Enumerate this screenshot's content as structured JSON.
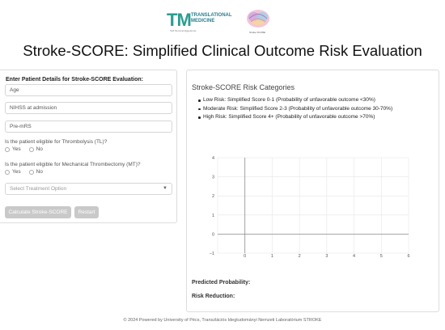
{
  "header": {
    "tm_logo_mark": "TM",
    "tm_logo_text": "TRANSLATIONAL MEDICINE",
    "tm_logo_sub": "Soft Semmel Egyetemet",
    "brain_logo_caption": "Stroke SCORE"
  },
  "page_title": "Stroke-SCORE: Simplified Clinical Outcome Risk Evaluation",
  "form": {
    "heading": "Enter Patient Details for Stroke-SCORE Evaluation:",
    "age_placeholder": "Age",
    "nihss_placeholder": "NIHSS at admission",
    "premrs_placeholder": "Pre-mRS",
    "q_thrombolysis": "Is the patient eligible for Thrombolysis (TL)?",
    "q_thrombectomy": "Is the patient eligible for Mechanical Thrombectomy (MT)?",
    "yes_label": "Yes",
    "no_label": "No",
    "treatment_select": "Select Treatment Option",
    "calculate_button": "Calculate Stroke-SCORE",
    "restart_button": "Restart"
  },
  "results": {
    "title": "Stroke-SCORE Risk Categories",
    "categories": [
      "Low Risk: Simplified Score 0-1 (Probability of unfavorable outcome <30%)",
      "Moderate Risk: Simplified Score 2-3 (Probability of unfavorable outcome 30-70%)",
      "High Risk: Simplified Score 4+ (Probability of unfavorable outcome >70%)"
    ],
    "predicted_probability_label": "Predicted Probability:",
    "risk_reduction_label": "Risk Reduction:"
  },
  "chart_data": {
    "type": "scatter",
    "title": "",
    "xlabel": "",
    "ylabel": "",
    "xlim": [
      -1,
      6
    ],
    "ylim": [
      -1,
      4
    ],
    "x_ticks": [
      "−1",
      "0",
      "1",
      "2",
      "3",
      "4",
      "5",
      "6"
    ],
    "y_ticks": [
      "−1",
      "0",
      "1",
      "2",
      "3",
      "4"
    ],
    "grid": true,
    "series": []
  },
  "footer": "© 2024 Powered by University of Pécs, Transzlációs Idegtudományi Nemzeti Laboratórium STROKE"
}
